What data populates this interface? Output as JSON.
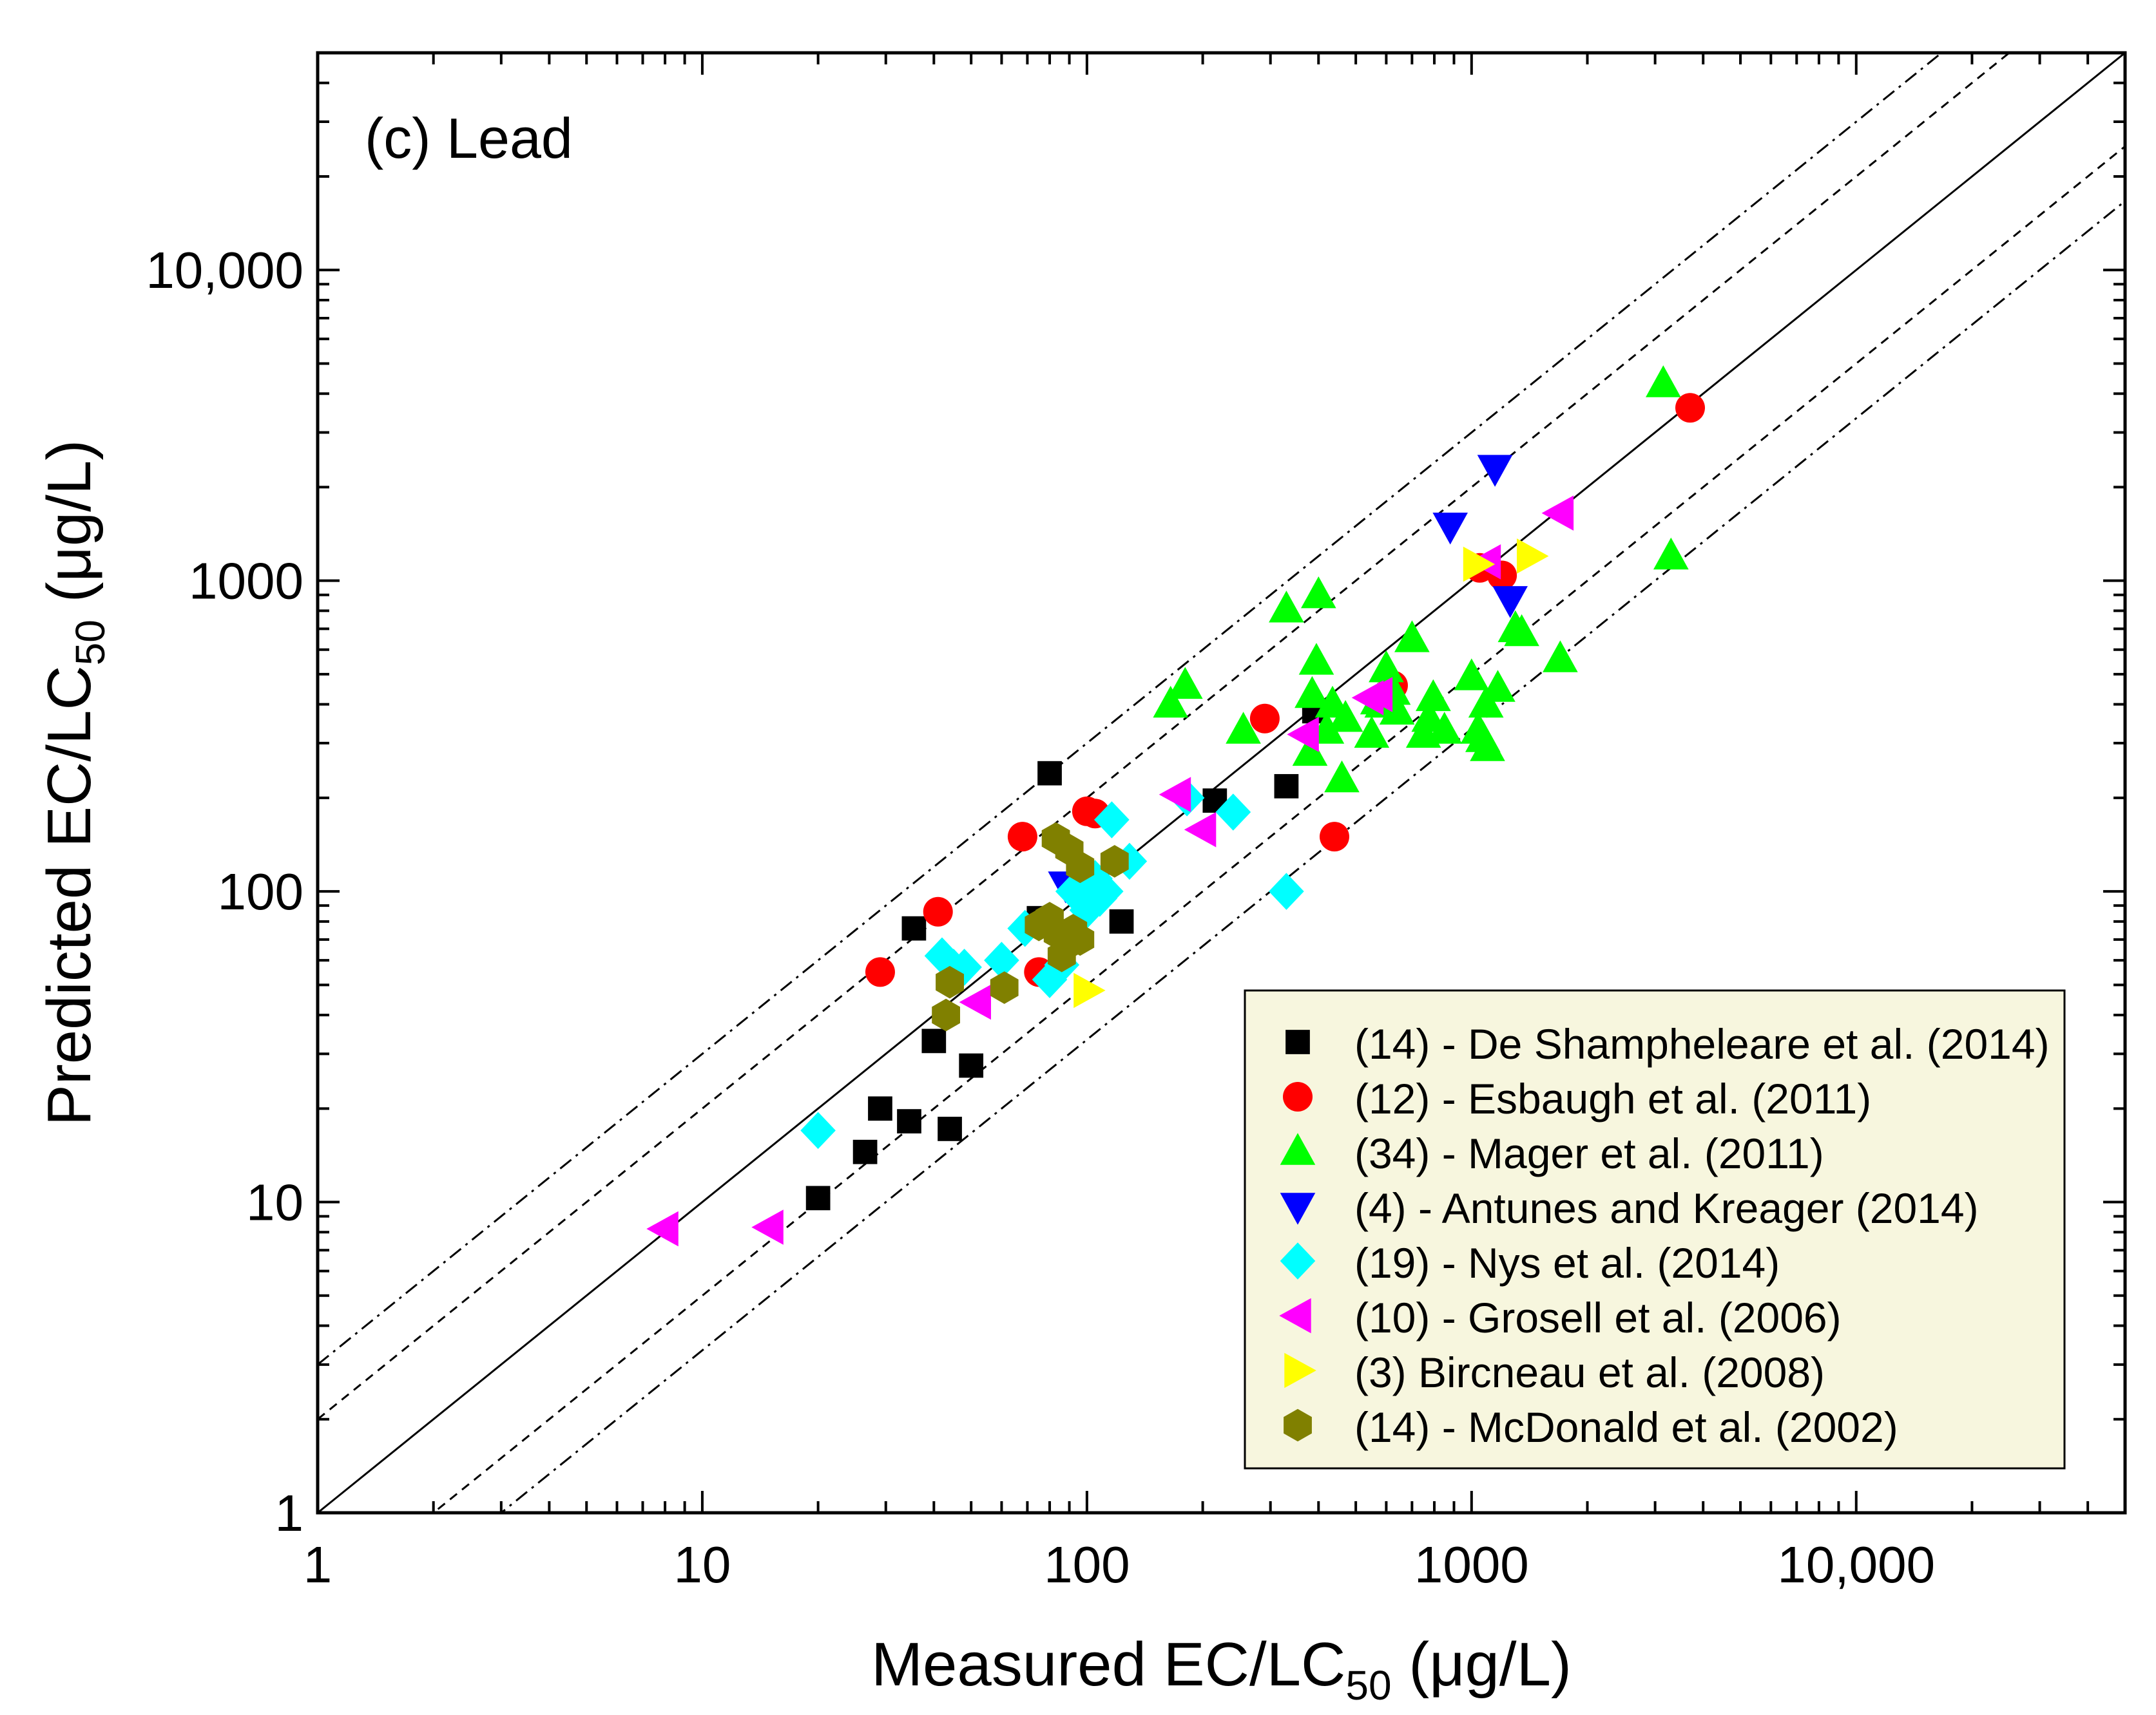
{
  "chart_data": {
    "type": "scatter",
    "panel_label": "(c) Lead",
    "xlabel": {
      "main": "Measured EC/LC",
      "sub": "50",
      "unit": " (μg/L)"
    },
    "ylabel": {
      "main": "Predicted EC/LC",
      "sub": "50",
      "unit": " (μg/L)"
    },
    "x_scale": "log",
    "y_scale": "log",
    "xlim": [
      1,
      50000
    ],
    "ylim": [
      1,
      50000
    ],
    "x_ticks": [
      {
        "value": 1,
        "label": "1"
      },
      {
        "value": 10,
        "label": "10"
      },
      {
        "value": 100,
        "label": "100"
      },
      {
        "value": 1000,
        "label": "1000"
      },
      {
        "value": 10000,
        "label": "10,000"
      }
    ],
    "y_ticks": [
      {
        "value": 1,
        "label": "1"
      },
      {
        "value": 10,
        "label": "10"
      },
      {
        "value": 100,
        "label": "100"
      },
      {
        "value": 1000,
        "label": "1000"
      },
      {
        "value": 10000,
        "label": "10,000"
      }
    ],
    "grid": false,
    "legend_position": "bottom-right",
    "legend_background": "#f7f6de",
    "reference_lines": [
      {
        "kind": "1:1",
        "factor": 1,
        "style": "solid"
      },
      {
        "kind": "factor",
        "factor": 2,
        "style": "dashed"
      },
      {
        "kind": "factor",
        "factor": 0.5,
        "style": "dashed"
      },
      {
        "kind": "factor",
        "factor": 3,
        "style": "dashdot"
      },
      {
        "kind": "factor",
        "factor": 0.3333,
        "style": "dashdot"
      }
    ],
    "series": [
      {
        "name": "(14) - De Shampheleare et al. (2014)",
        "marker": "square",
        "color": "#000000",
        "points": [
          [
            20,
            10.3
          ],
          [
            26.5,
            14.5
          ],
          [
            29,
            20
          ],
          [
            34.5,
            18.2
          ],
          [
            44,
            17.2
          ],
          [
            40,
            33
          ],
          [
            50,
            27.5
          ],
          [
            35.5,
            76
          ],
          [
            75,
            82
          ],
          [
            80,
            240
          ],
          [
            123,
            80
          ],
          [
            215,
            196
          ],
          [
            330,
            218
          ],
          [
            390,
            380
          ]
        ]
      },
      {
        "name": "(12) - Esbaugh et al. (2011)",
        "marker": "circle",
        "color": "#ff0000",
        "points": [
          [
            29,
            55
          ],
          [
            41,
            86
          ],
          [
            68,
            150
          ],
          [
            75,
            55
          ],
          [
            100,
            181
          ],
          [
            105,
            178
          ],
          [
            290,
            360
          ],
          [
            440,
            150
          ],
          [
            625,
            460
          ],
          [
            1050,
            1100
          ],
          [
            1200,
            1040
          ],
          [
            3700,
            3600
          ]
        ]
      },
      {
        "name": "(34) - Mager et al. (2011)",
        "marker": "triangle-up",
        "color": "#00ff00",
        "points": [
          [
            165,
            400
          ],
          [
            180,
            460
          ],
          [
            255,
            330
          ],
          [
            330,
            810
          ],
          [
            380,
            280
          ],
          [
            395,
            550
          ],
          [
            400,
            900
          ],
          [
            385,
            430
          ],
          [
            420,
            330
          ],
          [
            435,
            400
          ],
          [
            460,
            230
          ],
          [
            550,
            320
          ],
          [
            585,
            400
          ],
          [
            600,
            520
          ],
          [
            625,
            440
          ],
          [
            700,
            650
          ],
          [
            750,
            320
          ],
          [
            775,
            360
          ],
          [
            795,
            420
          ],
          [
            850,
            330
          ],
          [
            1000,
            490
          ],
          [
            1040,
            330
          ],
          [
            1070,
            310
          ],
          [
            1090,
            400
          ],
          [
            1100,
            290
          ],
          [
            1170,
            450
          ],
          [
            1300,
            700
          ],
          [
            1350,
            680
          ],
          [
            1700,
            560
          ],
          [
            3150,
            4300
          ],
          [
            3300,
            1200
          ],
          [
            470,
            360
          ],
          [
            640,
            380
          ],
          [
            570,
            410
          ]
        ]
      },
      {
        "name": "(4) - Antunes and Kreager (2014)",
        "marker": "triangle-down",
        "color": "#0000ff",
        "points": [
          [
            88,
            105
          ],
          [
            880,
            1500
          ],
          [
            1150,
            2300
          ],
          [
            1260,
            870
          ]
        ]
      },
      {
        "name": "(19) - Nys et al. (2014)",
        "marker": "diamond",
        "color": "#00ffff",
        "points": [
          [
            20,
            17
          ],
          [
            42,
            62
          ],
          [
            45,
            57
          ],
          [
            48,
            57
          ],
          [
            69,
            76
          ],
          [
            80,
            52
          ],
          [
            86,
            58
          ],
          [
            92,
            100
          ],
          [
            100,
            87
          ],
          [
            108,
            95
          ],
          [
            112,
            100
          ],
          [
            116,
            170
          ],
          [
            129,
            125
          ],
          [
            182,
            200
          ],
          [
            240,
            180
          ],
          [
            330,
            100
          ],
          [
            90,
            70
          ],
          [
            105,
            110
          ],
          [
            60,
            60
          ]
        ]
      },
      {
        "name": "(10) - Grosell et al. (2006)",
        "marker": "triangle-left",
        "color": "#ff00ff",
        "points": [
          [
            8,
            8.2
          ],
          [
            15,
            8.3
          ],
          [
            52,
            44
          ],
          [
            172,
            205
          ],
          [
            200,
            158
          ],
          [
            370,
            320
          ],
          [
            545,
            420
          ],
          [
            575,
            430
          ],
          [
            1100,
            1150
          ],
          [
            1700,
            1650
          ]
        ]
      },
      {
        "name": "(3) Bircneau et al. (2008)",
        "marker": "triangle-right",
        "color": "#ffff00",
        "points": [
          [
            100,
            48
          ],
          [
            1030,
            1130
          ],
          [
            1420,
            1200
          ]
        ]
      },
      {
        "name": "(14) - McDonald et al. (2002)",
        "marker": "hexagon",
        "color": "#808000",
        "points": [
          [
            43,
            40
          ],
          [
            44,
            51
          ],
          [
            61,
            49
          ],
          [
            75,
            78
          ],
          [
            80,
            82
          ],
          [
            84,
            73
          ],
          [
            86,
            62
          ],
          [
            88,
            67
          ],
          [
            92,
            75
          ],
          [
            96,
            70
          ],
          [
            83,
            148
          ],
          [
            90,
            136
          ],
          [
            96,
            120
          ],
          [
            118,
            125
          ]
        ]
      }
    ]
  }
}
